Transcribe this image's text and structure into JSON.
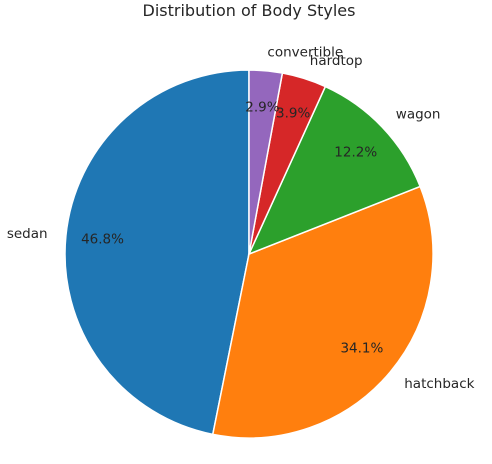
{
  "chart_data": {
    "type": "pie",
    "title": "Distribution of Body Styles",
    "start_angle_deg": 90,
    "direction": "counterclockwise",
    "slices": [
      {
        "label": "sedan",
        "value": 46.8,
        "pct_label": "46.8%",
        "color": "#1f77b4"
      },
      {
        "label": "hatchback",
        "value": 34.1,
        "pct_label": "34.1%",
        "color": "#ff7f0e"
      },
      {
        "label": "wagon",
        "value": 12.2,
        "pct_label": "12.2%",
        "color": "#2ca02c"
      },
      {
        "label": "hardtop",
        "value": 3.9,
        "pct_label": "3.9%",
        "color": "#d62728"
      },
      {
        "label": "convertible",
        "value": 2.9,
        "pct_label": "2.9%",
        "color": "#9467bd"
      }
    ]
  }
}
